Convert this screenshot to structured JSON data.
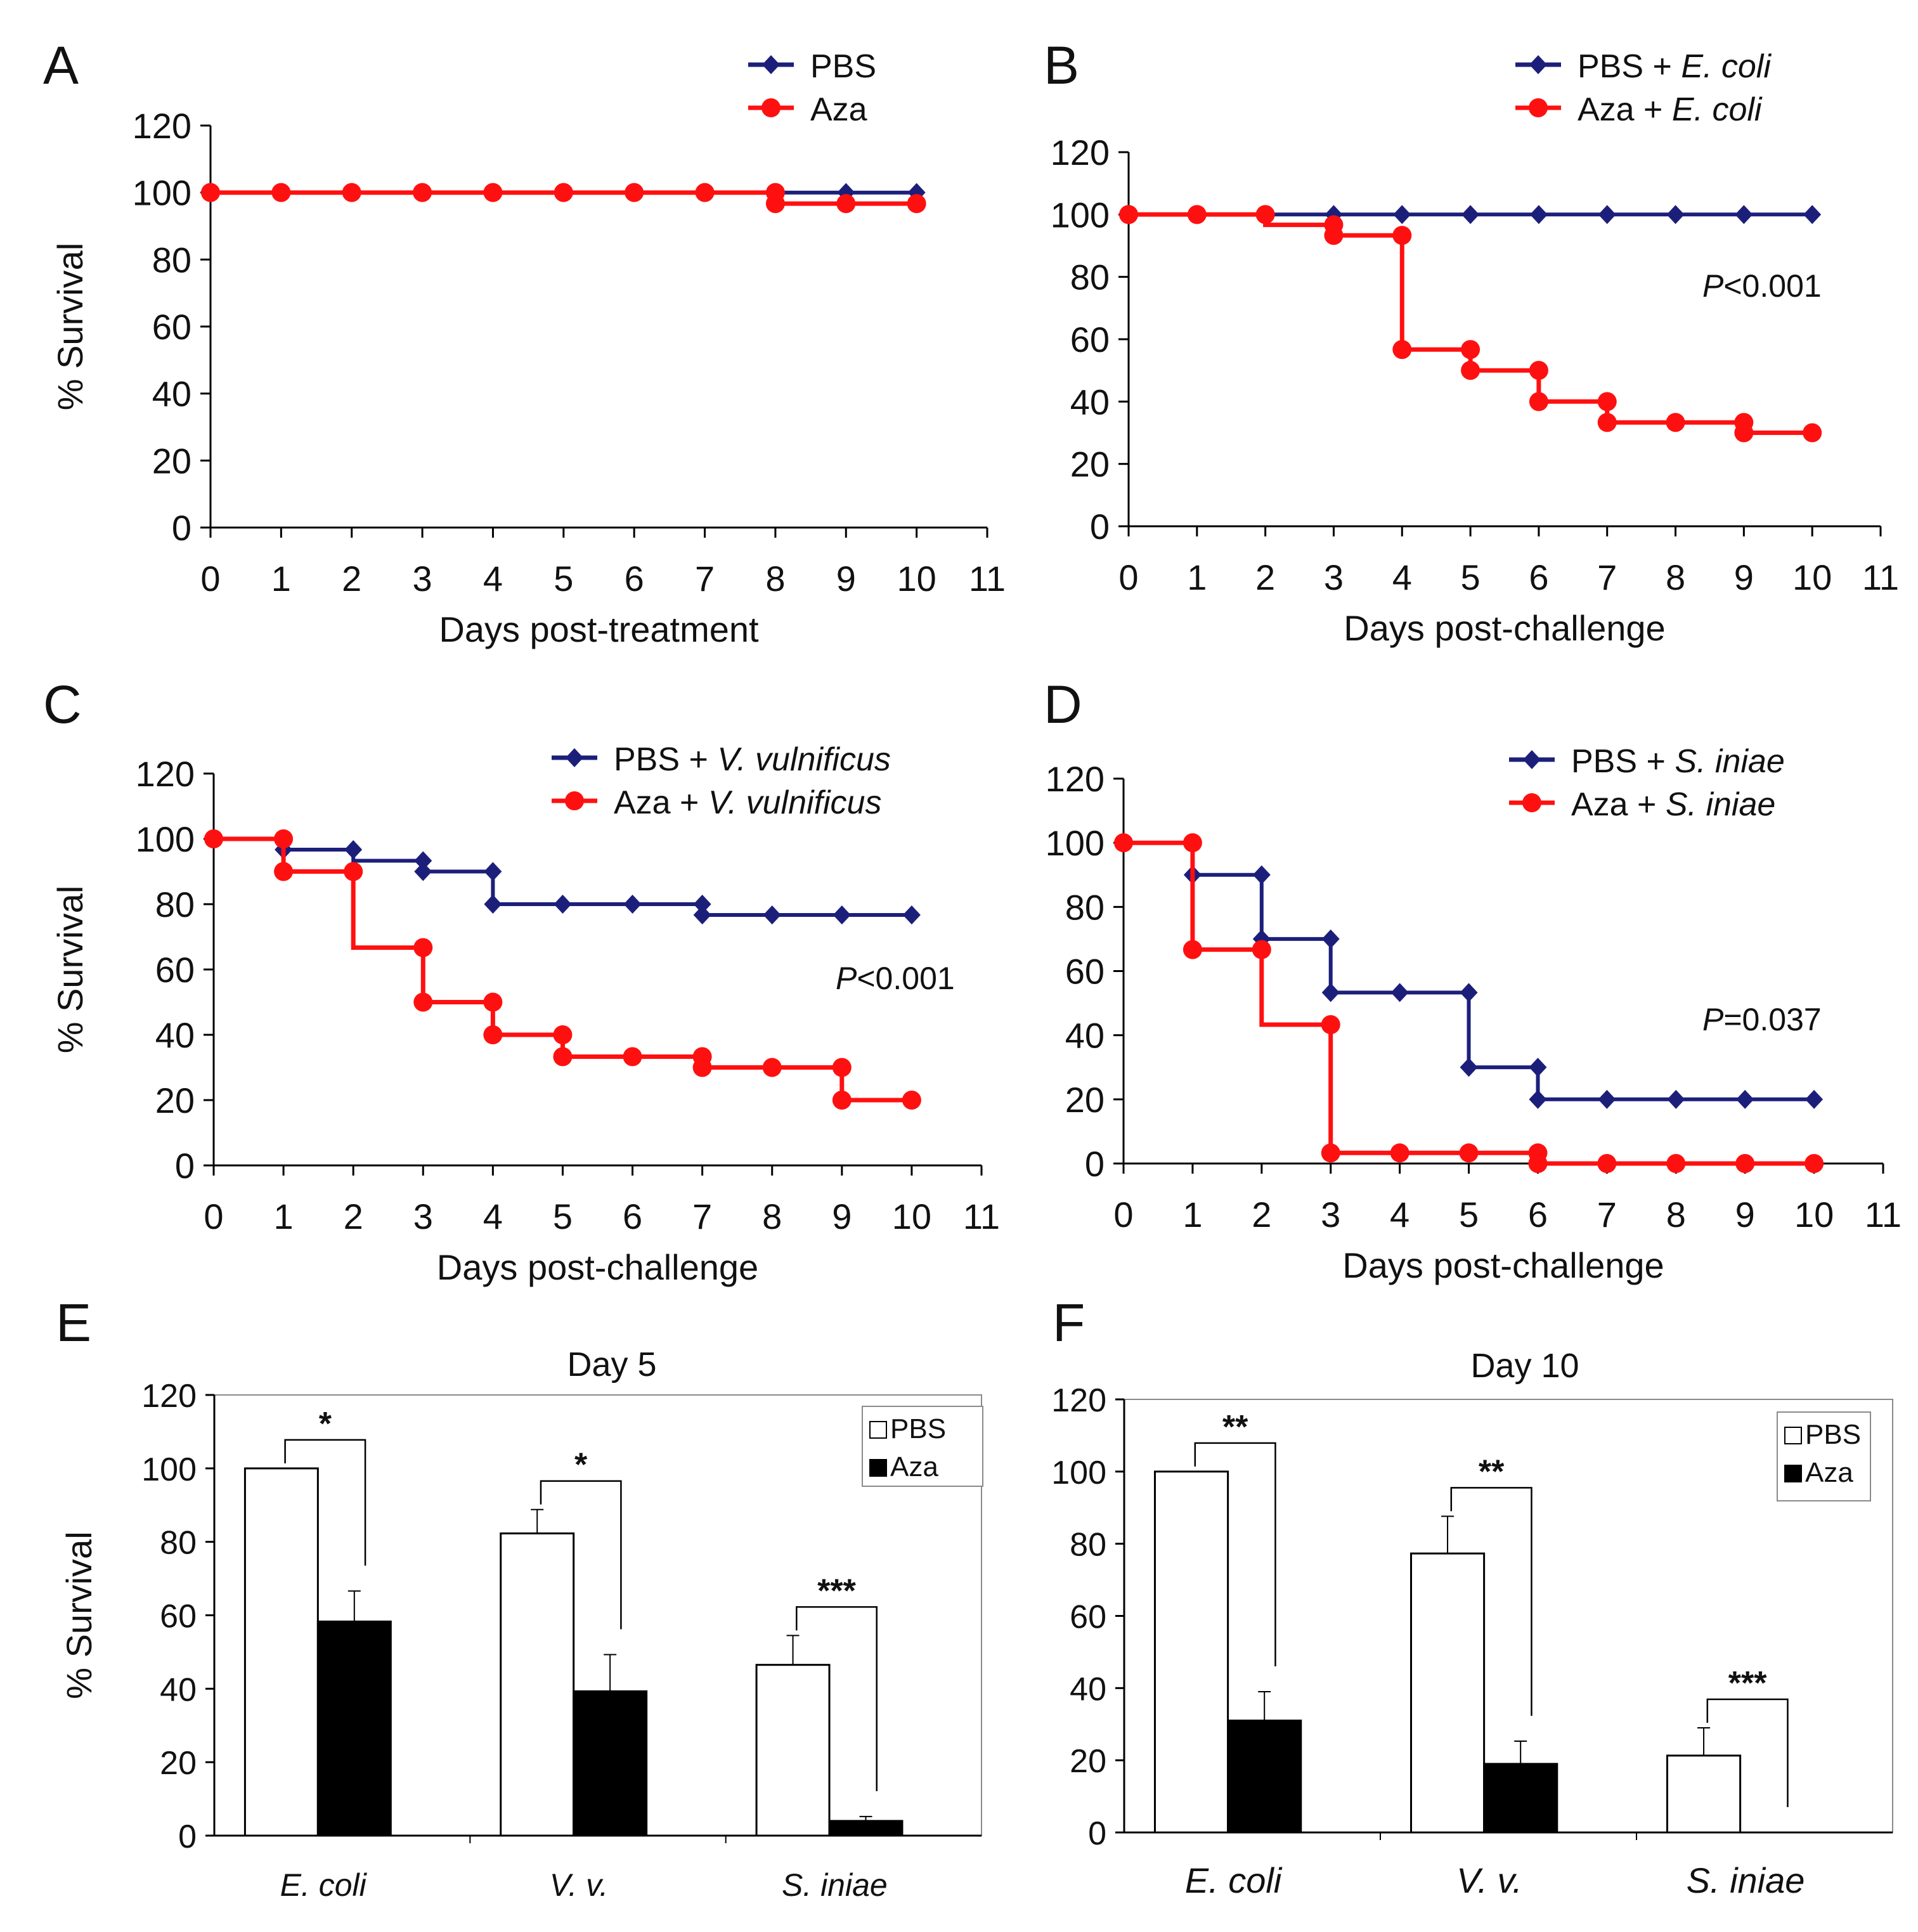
{
  "colors": {
    "pbs": "#1c1f7a",
    "aza": "#ff1010",
    "axis": "#000000",
    "bar_aza": "#000000",
    "bar_pbs": "#ffffff"
  },
  "chart_data": [
    {
      "id": "A",
      "panel_label": "A",
      "type": "line",
      "title": "",
      "xlabel": "Days post-treatment",
      "ylabel": "% Survival",
      "xlim": [
        0,
        11
      ],
      "ylim": [
        0,
        120
      ],
      "xticks": [
        "0",
        "1",
        "2",
        "3",
        "4",
        "5",
        "6",
        "7",
        "8",
        "9",
        "10",
        "11"
      ],
      "yticks": [
        "0",
        "20",
        "40",
        "60",
        "80",
        "100",
        "120"
      ],
      "p_prefix": "",
      "p_suffix": "",
      "series": [
        {
          "name": "PBS",
          "name_prefix": "PBS",
          "name_italic": "",
          "color_key": "pbs",
          "marker": "diamond",
          "steps": [
            [
              0,
              100
            ],
            [
              10,
              100
            ]
          ],
          "points": [
            [
              0,
              100
            ],
            [
              1,
              100
            ],
            [
              2,
              100
            ],
            [
              3,
              100
            ],
            [
              4,
              100
            ],
            [
              5,
              100
            ],
            [
              6,
              100
            ],
            [
              7,
              100
            ],
            [
              8,
              100
            ],
            [
              9,
              100
            ],
            [
              10,
              100
            ]
          ]
        },
        {
          "name": "Aza",
          "name_prefix": "Aza",
          "name_italic": "",
          "color_key": "aza",
          "marker": "circle",
          "steps": [
            [
              0,
              100
            ],
            [
              8,
              100
            ],
            [
              8,
              96.7
            ],
            [
              10,
              96.7
            ]
          ],
          "points": [
            [
              0,
              100
            ],
            [
              1,
              100
            ],
            [
              2,
              100
            ],
            [
              3,
              100
            ],
            [
              4,
              100
            ],
            [
              5,
              100
            ],
            [
              6,
              100
            ],
            [
              7,
              100
            ],
            [
              8,
              100
            ],
            [
              8,
              96.7
            ],
            [
              9,
              96.7
            ],
            [
              10,
              96.7
            ]
          ]
        }
      ]
    },
    {
      "id": "B",
      "panel_label": "B",
      "type": "line",
      "title": "",
      "xlabel": "Days post-challenge",
      "ylabel": "",
      "xlim": [
        0,
        11
      ],
      "ylim": [
        0,
        120
      ],
      "xticks": [
        "0",
        "1",
        "2",
        "3",
        "4",
        "5",
        "6",
        "7",
        "8",
        "9",
        "10",
        "11"
      ],
      "yticks": [
        "0",
        "20",
        "40",
        "60",
        "80",
        "100",
        "120"
      ],
      "p_prefix": "P",
      "p_suffix": "<0.001",
      "series": [
        {
          "name": "PBS + E. coli",
          "name_prefix": "PBS + ",
          "name_italic": "E. coli",
          "color_key": "pbs",
          "marker": "diamond",
          "steps": [
            [
              0,
              100
            ],
            [
              10,
              100
            ]
          ],
          "points": [
            [
              0,
              100
            ],
            [
              1,
              100
            ],
            [
              2,
              100
            ],
            [
              3,
              100
            ],
            [
              4,
              100
            ],
            [
              5,
              100
            ],
            [
              6,
              100
            ],
            [
              7,
              100
            ],
            [
              8,
              100
            ],
            [
              9,
              100
            ],
            [
              10,
              100
            ]
          ]
        },
        {
          "name": "Aza + E. coli",
          "name_prefix": "Aza + ",
          "name_italic": "E. coli",
          "color_key": "aza",
          "marker": "circle",
          "steps": [
            [
              0,
              100
            ],
            [
              2,
              100
            ],
            [
              2,
              96.7
            ],
            [
              3,
              96.7
            ],
            [
              3,
              93.3
            ],
            [
              4,
              93.3
            ],
            [
              4,
              56.7
            ],
            [
              5,
              56.7
            ],
            [
              5,
              50
            ],
            [
              6,
              50
            ],
            [
              6,
              40
            ],
            [
              7,
              40
            ],
            [
              7,
              33.3
            ],
            [
              9,
              33.3
            ],
            [
              9,
              30
            ],
            [
              10,
              30
            ]
          ],
          "points": [
            [
              0,
              100
            ],
            [
              1,
              100
            ],
            [
              2,
              100
            ],
            [
              3,
              96.7
            ],
            [
              3,
              93.3
            ],
            [
              4,
              93.3
            ],
            [
              4,
              56.7
            ],
            [
              5,
              56.7
            ],
            [
              5,
              50
            ],
            [
              6,
              50
            ],
            [
              6,
              40
            ],
            [
              7,
              40
            ],
            [
              7,
              33.3
            ],
            [
              8,
              33.3
            ],
            [
              9,
              33.3
            ],
            [
              9,
              30
            ],
            [
              10,
              30
            ]
          ]
        }
      ]
    },
    {
      "id": "C",
      "panel_label": "C",
      "type": "line",
      "title": "",
      "xlabel": "Days post-challenge",
      "ylabel": "% Survival",
      "xlim": [
        0,
        11
      ],
      "ylim": [
        0,
        120
      ],
      "xticks": [
        "0",
        "1",
        "2",
        "3",
        "4",
        "5",
        "6",
        "7",
        "8",
        "9",
        "10",
        "11"
      ],
      "yticks": [
        "0",
        "20",
        "40",
        "60",
        "80",
        "100",
        "120"
      ],
      "p_prefix": "P",
      "p_suffix": "<0.001",
      "series": [
        {
          "name": "PBS + V. vulnificus",
          "name_prefix": "PBS + ",
          "name_italic": "V. vulnificus",
          "color_key": "pbs",
          "marker": "diamond",
          "steps": [
            [
              0,
              100
            ],
            [
              1,
              100
            ],
            [
              1,
              96.7
            ],
            [
              2,
              96.7
            ],
            [
              2,
              93.3
            ],
            [
              3,
              93.3
            ],
            [
              3,
              90
            ],
            [
              4,
              90
            ],
            [
              4,
              80
            ],
            [
              7,
              80
            ],
            [
              7,
              76.7
            ],
            [
              10,
              76.7
            ]
          ],
          "points": [
            [
              0,
              100
            ],
            [
              1,
              96.7
            ],
            [
              2,
              96.7
            ],
            [
              3,
              93.3
            ],
            [
              3,
              90
            ],
            [
              4,
              90
            ],
            [
              4,
              80
            ],
            [
              5,
              80
            ],
            [
              6,
              80
            ],
            [
              7,
              80
            ],
            [
              7,
              76.7
            ],
            [
              8,
              76.7
            ],
            [
              9,
              76.7
            ],
            [
              10,
              76.7
            ]
          ]
        },
        {
          "name": "Aza + V. vulnificus",
          "name_prefix": "Aza + ",
          "name_italic": "V. vulnificus",
          "color_key": "aza",
          "marker": "circle",
          "steps": [
            [
              0,
              100
            ],
            [
              1,
              100
            ],
            [
              1,
              90
            ],
            [
              2,
              90
            ],
            [
              2,
              66.7
            ],
            [
              3,
              66.7
            ],
            [
              3,
              50
            ],
            [
              4,
              50
            ],
            [
              4,
              40
            ],
            [
              5,
              40
            ],
            [
              5,
              33.3
            ],
            [
              7,
              33.3
            ],
            [
              7,
              30
            ],
            [
              9,
              30
            ],
            [
              9,
              20
            ],
            [
              10,
              20
            ]
          ],
          "points": [
            [
              0,
              100
            ],
            [
              1,
              100
            ],
            [
              1,
              90
            ],
            [
              2,
              90
            ],
            [
              3,
              66.7
            ],
            [
              3,
              50
            ],
            [
              4,
              50
            ],
            [
              4,
              40
            ],
            [
              5,
              40
            ],
            [
              5,
              33.3
            ],
            [
              6,
              33.3
            ],
            [
              7,
              33.3
            ],
            [
              7,
              30
            ],
            [
              8,
              30
            ],
            [
              9,
              30
            ],
            [
              9,
              20
            ],
            [
              10,
              20
            ]
          ]
        }
      ]
    },
    {
      "id": "D",
      "panel_label": "D",
      "type": "line",
      "title": "",
      "xlabel": "Days post-challenge",
      "ylabel": "",
      "xlim": [
        0,
        11
      ],
      "ylim": [
        0,
        120
      ],
      "xticks": [
        "0",
        "1",
        "2",
        "3",
        "4",
        "5",
        "6",
        "7",
        "8",
        "9",
        "10",
        "11"
      ],
      "yticks": [
        "0",
        "20",
        "40",
        "60",
        "80",
        "100",
        "120"
      ],
      "p_prefix": "P",
      "p_suffix": "=0.037",
      "series": [
        {
          "name": "PBS + S. iniae",
          "name_prefix": "PBS + ",
          "name_italic": "S. iniae",
          "color_key": "pbs",
          "marker": "diamond",
          "steps": [
            [
              0,
              100
            ],
            [
              1,
              100
            ],
            [
              1,
              90
            ],
            [
              2,
              90
            ],
            [
              2,
              70
            ],
            [
              3,
              70
            ],
            [
              3,
              53.3
            ],
            [
              5,
              53.3
            ],
            [
              5,
              30
            ],
            [
              6,
              30
            ],
            [
              6,
              20
            ],
            [
              10,
              20
            ]
          ],
          "points": [
            [
              0,
              100
            ],
            [
              1,
              90
            ],
            [
              2,
              90
            ],
            [
              2,
              70
            ],
            [
              3,
              70
            ],
            [
              3,
              53.3
            ],
            [
              4,
              53.3
            ],
            [
              5,
              53.3
            ],
            [
              5,
              30
            ],
            [
              6,
              30
            ],
            [
              6,
              20
            ],
            [
              7,
              20
            ],
            [
              8,
              20
            ],
            [
              9,
              20
            ],
            [
              10,
              20
            ]
          ]
        },
        {
          "name": "Aza + S. iniae",
          "name_prefix": "Aza + ",
          "name_italic": "S. iniae",
          "color_key": "aza",
          "marker": "circle",
          "steps": [
            [
              0,
              100
            ],
            [
              1,
              100
            ],
            [
              1,
              66.7
            ],
            [
              2,
              66.7
            ],
            [
              2,
              43.3
            ],
            [
              3,
              43.3
            ],
            [
              3,
              3.3
            ],
            [
              6,
              3.3
            ],
            [
              6,
              0
            ],
            [
              10,
              0
            ]
          ],
          "points": [
            [
              0,
              100
            ],
            [
              1,
              100
            ],
            [
              1,
              66.7
            ],
            [
              2,
              66.7
            ],
            [
              3,
              43.3
            ],
            [
              3,
              3.3
            ],
            [
              4,
              3.3
            ],
            [
              5,
              3.3
            ],
            [
              6,
              3.3
            ],
            [
              6,
              0
            ],
            [
              7,
              0
            ],
            [
              8,
              0
            ],
            [
              9,
              0
            ],
            [
              10,
              0
            ]
          ]
        }
      ]
    },
    {
      "id": "E",
      "panel_label": "E",
      "type": "bar",
      "title": "Day 5",
      "xlabel": "",
      "ylabel": "% Survival",
      "ylim": [
        0,
        120
      ],
      "yticks": [
        "0",
        "20",
        "40",
        "60",
        "80",
        "100",
        "120"
      ],
      "categories": [
        "E. coli",
        "V. v.",
        "S. iniae"
      ],
      "legend": [
        "PBS",
        "Aza"
      ],
      "series": [
        {
          "name": "PBS",
          "values": [
            100,
            82.3,
            46.5
          ],
          "errors": [
            0,
            6.5,
            8
          ]
        },
        {
          "name": "Aza",
          "values": [
            58.3,
            39.3,
            4
          ],
          "errors": [
            8.3,
            10,
            1.2
          ]
        }
      ],
      "significance": [
        "*",
        "*",
        "***"
      ]
    },
    {
      "id": "F",
      "panel_label": "F",
      "type": "bar",
      "title": "Day 10",
      "xlabel": "",
      "ylabel": "",
      "ylim": [
        0,
        120
      ],
      "yticks": [
        "0",
        "20",
        "40",
        "60",
        "80",
        "100",
        "120"
      ],
      "categories": [
        "E. coli",
        "V. v.",
        "S. iniae"
      ],
      "legend": [
        "PBS",
        "Aza"
      ],
      "series": [
        {
          "name": "PBS",
          "values": [
            100,
            77.3,
            21.3
          ],
          "errors": [
            0,
            10.3,
            7.7
          ]
        },
        {
          "name": "Aza",
          "values": [
            31,
            19,
            0
          ],
          "errors": [
            8,
            6.3,
            0
          ]
        }
      ],
      "significance": [
        "**",
        "**",
        "***"
      ]
    }
  ]
}
